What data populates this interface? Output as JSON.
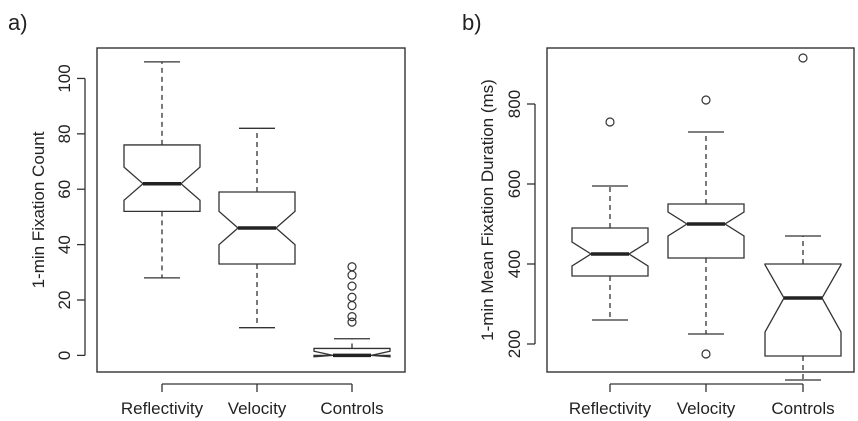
{
  "chart_data": [
    {
      "type": "box",
      "panel_label": "a)",
      "ylabel": "1-min Fixation Count",
      "ylim": [
        -6,
        111
      ],
      "yticks": [
        0,
        20,
        40,
        60,
        80,
        100
      ],
      "notched": true,
      "categories": [
        "Reflectivity",
        "Velocity",
        "Controls"
      ],
      "boxes": [
        {
          "name": "Reflectivity",
          "whisker_low": 28,
          "q1": 52,
          "notch_low": 56,
          "median": 62,
          "notch_high": 68,
          "q3": 76,
          "whisker_high": 106,
          "outliers": []
        },
        {
          "name": "Velocity",
          "whisker_low": 10,
          "q1": 33,
          "notch_low": 40,
          "median": 46,
          "notch_high": 52,
          "q3": 59,
          "whisker_high": 82,
          "outliers": []
        },
        {
          "name": "Controls",
          "whisker_low": 0,
          "q1": 0,
          "notch_low": -0.5,
          "median": 0,
          "notch_high": 1.5,
          "q3": 2.5,
          "whisker_high": 6,
          "outliers": [
            12,
            14,
            18,
            21,
            25,
            29,
            32
          ]
        }
      ]
    },
    {
      "type": "box",
      "panel_label": "b)",
      "ylabel": "1-min Mean Fixation Duration (ms)",
      "ylim": [
        130,
        940
      ],
      "yticks": [
        200,
        400,
        600,
        800
      ],
      "notched": true,
      "categories": [
        "Reflectivity",
        "Velocity",
        "Controls"
      ],
      "boxes": [
        {
          "name": "Reflectivity",
          "whisker_low": 260,
          "q1": 370,
          "notch_low": 395,
          "median": 425,
          "notch_high": 455,
          "q3": 490,
          "whisker_high": 595,
          "outliers": [
            755
          ]
        },
        {
          "name": "Velocity",
          "whisker_low": 225,
          "q1": 415,
          "notch_low": 470,
          "median": 500,
          "notch_high": 530,
          "q3": 550,
          "whisker_high": 730,
          "outliers": [
            175,
            810
          ]
        },
        {
          "name": "Controls",
          "whisker_low": 110,
          "q1": 170,
          "notch_low": 230,
          "median": 315,
          "notch_high": 398,
          "q3": 400,
          "whisker_high": 470,
          "outliers": [
            915
          ]
        }
      ]
    }
  ]
}
